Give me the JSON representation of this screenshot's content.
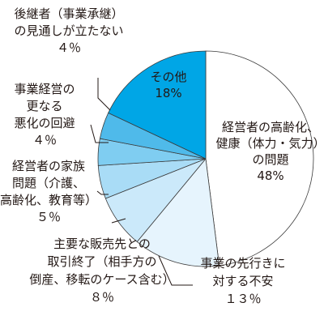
{
  "chart_data": {
    "type": "pie",
    "start": "12 o'clock, clockwise",
    "slices": [
      {
        "lines": [
          "経営者の高齢化、",
          "健康（体力・気力）",
          "の問題",
          "48%"
        ],
        "value": 48,
        "color": "#ffffff"
      },
      {
        "lines": [
          "事業の先行きに",
          "対する不安",
          "１３％"
        ],
        "value": 13,
        "color": "#e6f4fd"
      },
      {
        "lines": [
          "主要な販売先との",
          "取引終了（相手方の",
          "倒産、移転のケース含む）",
          "８％"
        ],
        "value": 8,
        "color": "#cbe9fa"
      },
      {
        "lines": [
          "経営者の家族",
          "問題（介護、",
          "高齢化、教育等）",
          "５％"
        ],
        "value": 5,
        "color": "#a9dcf6"
      },
      {
        "lines": [
          "事業経営の",
          "更なる",
          "悪化の回避",
          "４％"
        ],
        "value": 4,
        "color": "#7fcdf1"
      },
      {
        "lines": [
          "後継者（事業承継）",
          "の見通しが立たない",
          "４％"
        ],
        "value": 4,
        "color": "#4fbaea"
      },
      {
        "lines": [
          "その他",
          "18%"
        ],
        "value": 18,
        "color": "#00a6e6"
      }
    ]
  }
}
